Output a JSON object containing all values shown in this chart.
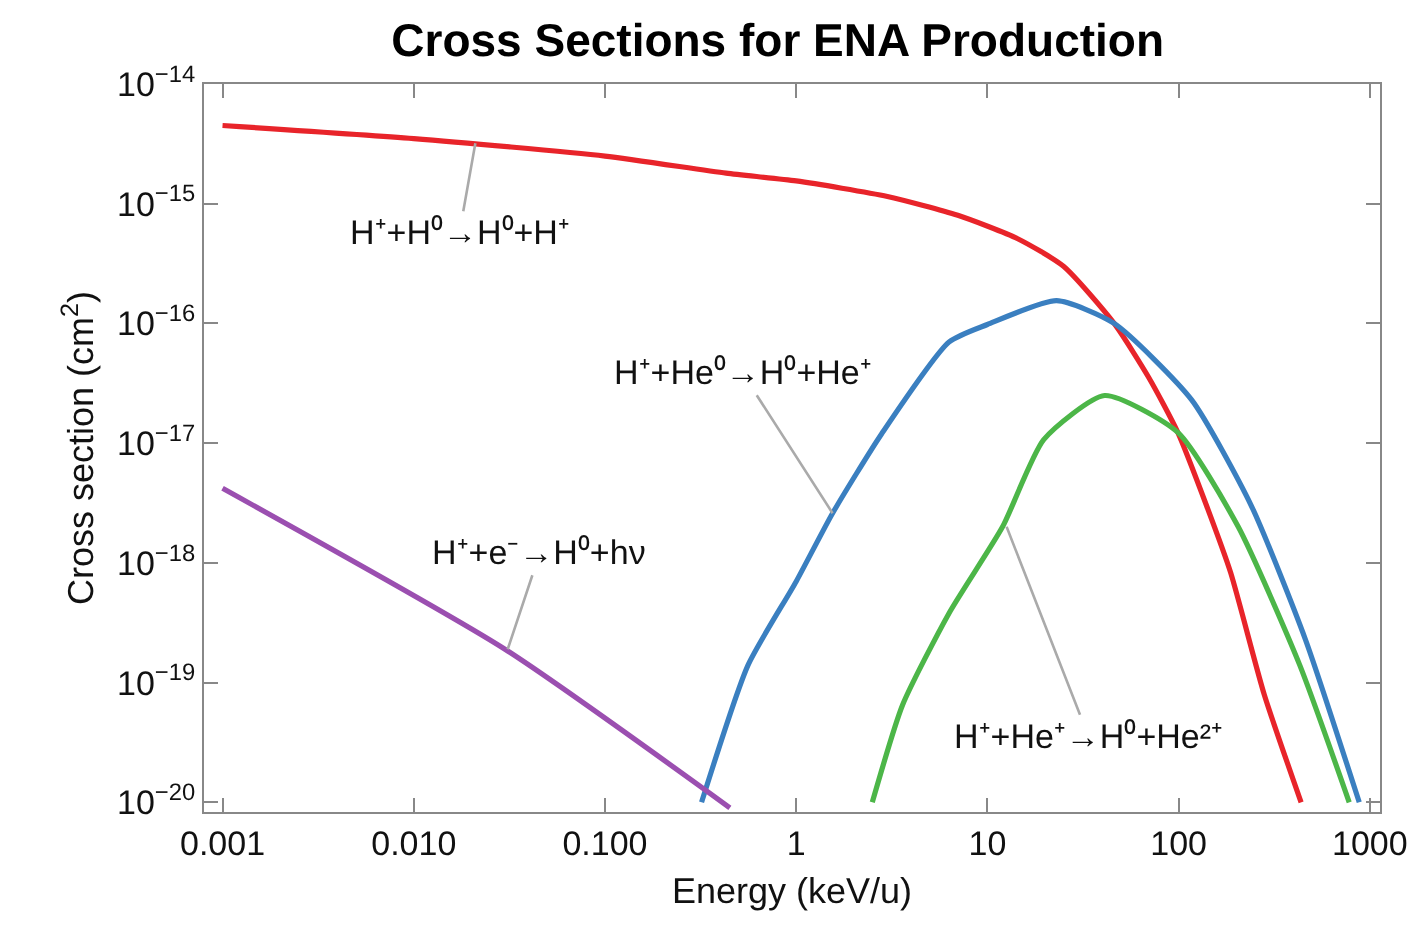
{
  "chart_data": {
    "type": "line",
    "title": "Cross Sections for ENA Production",
    "xlabel": "Energy (keV/u)",
    "ylabel": "Cross section (cm$^{2}$)",
    "log": "xy",
    "grid": false,
    "marker": "none",
    "line_style": "solid",
    "xlim": [
      0.0008,
      1130
    ],
    "ylim": [
      8.3e-21,
      1e-14
    ],
    "xticks": [
      {
        "value": 0.001,
        "label": "0.001"
      },
      {
        "value": 0.01,
        "label": "0.010"
      },
      {
        "value": 0.1,
        "label": "0.100"
      },
      1,
      10,
      100,
      1000
    ],
    "yticks": [
      {
        "value": 1e-20,
        "label": "10$^{−20}$"
      },
      {
        "value": 1e-19,
        "label": "10$^{−19}$"
      },
      {
        "value": 1e-18,
        "label": "10$^{−18}$"
      },
      {
        "value": 1e-17,
        "label": "10$^{−17}$"
      },
      {
        "value": 1e-16,
        "label": "10$^{−16}$"
      },
      {
        "value": 1e-15,
        "label": "10$^{−15}$"
      },
      {
        "value": 1e-14,
        "label": "10$^{−14}$"
      }
    ],
    "series": [
      {
        "color": "#e8242a",
        "x": [
          0.001,
          0.01,
          0.1,
          0.43,
          1,
          3,
          7,
          14.4,
          25,
          46,
          70,
          99,
          140,
          187,
          280,
          437
        ],
        "values": [
          4.5e-15,
          3.5e-15,
          2.5e-15,
          1.8e-15,
          1.55e-15,
          1.15e-15,
          8e-16,
          5.1e-16,
          3e-16,
          1e-16,
          3.5e-17,
          1.23e-17,
          3e-18,
          8.3e-19,
          8e-20,
          1e-20
        ]
      },
      {
        "color": "#3a7fc0",
        "x": [
          0.32,
          0.56,
          1,
          1.55,
          2.8,
          6.3,
          10,
          23,
          46,
          117,
          240,
          460,
          880
        ],
        "values": [
          1e-20,
          1.4e-19,
          7e-19,
          2.6e-18,
          1.2e-17,
          7e-17,
          9.8e-17,
          1.55e-16,
          1e-16,
          2.3e-17,
          3e-18,
          2.3e-19,
          1e-20
        ]
      },
      {
        "color": "#4cb648",
        "x": [
          2.5,
          3.6,
          6.3,
          12,
          19.7,
          41,
          99,
          205,
          430,
          780
        ],
        "values": [
          1e-20,
          6.5e-20,
          3.8e-19,
          2e-18,
          1.07e-17,
          2.5e-17,
          1.23e-17,
          2e-18,
          1.4e-19,
          1e-20
        ]
      },
      {
        "color": "#9b4fb0",
        "x": [
          0.001,
          0.03,
          0.45
        ],
        "values": [
          4.2e-18,
          1.9e-19,
          9e-21
        ]
      }
    ],
    "annotations": [
      {
        "text": "H⁺+H⁰→H⁰+H⁺",
        "x": 0.021,
        "y": 3.2e-15
      },
      {
        "text": "H⁺+He⁰→H⁰+He⁺",
        "x": 1.55,
        "y": 2.6e-18
      },
      {
        "text": "H⁺+He⁺→H⁰+He²⁺",
        "x": 12.6,
        "y": 2e-18
      },
      {
        "text": "H⁺+e⁻→H⁰+hν",
        "x": 0.031,
        "y": 1.9e-19
      }
    ]
  }
}
